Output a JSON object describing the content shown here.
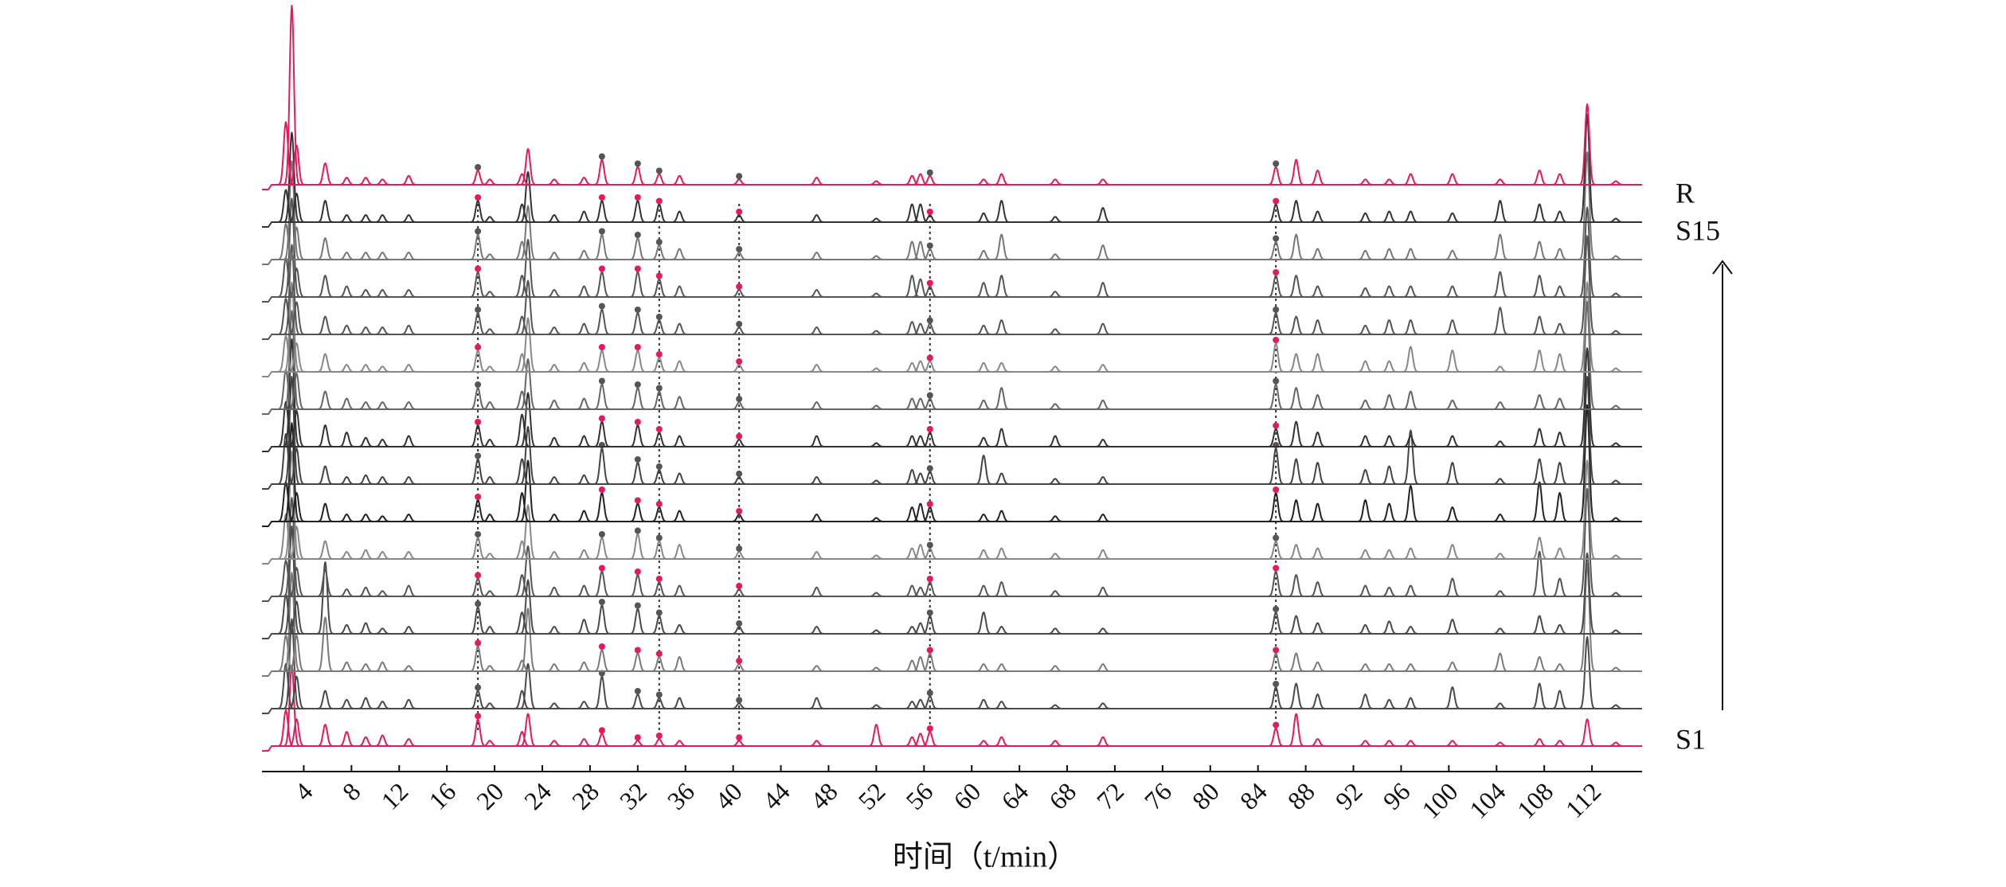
{
  "chart_data": {
    "type": "line",
    "xlabel": "时间（t/min）",
    "xlim": [
      0.5,
      116.2
    ],
    "xticks": [
      4,
      8,
      12,
      16,
      20,
      24,
      28,
      32,
      36,
      40,
      44,
      48,
      52,
      56,
      60,
      64,
      68,
      72,
      76,
      80,
      84,
      88,
      92,
      96,
      100,
      104,
      108,
      112
    ],
    "x": [
      2.5,
      3.0,
      3.4,
      5.8,
      7.6,
      9.2,
      10.6,
      12.8,
      18.6,
      19.6,
      22.3,
      22.8,
      25.0,
      27.5,
      29.0,
      32.0,
      33.8,
      35.5,
      40.5,
      47.0,
      52.0,
      55.0,
      55.7,
      56.5,
      61.0,
      62.5,
      67.0,
      71.0,
      85.5,
      87.2,
      89.0,
      93.0,
      95.0,
      96.8,
      100.3,
      104.3,
      107.6,
      109.3,
      111.6,
      114.0
    ],
    "marker_x": [
      18.6,
      29.0,
      32.0,
      33.8,
      40.5,
      56.5,
      85.5
    ],
    "marker_color": "#e8185a",
    "reference_lines": [
      18.6,
      33.8,
      40.5,
      56.5,
      85.5
    ],
    "series": [
      {
        "name": "S1",
        "color": "#e8185a",
        "values": [
          20,
          45,
          15,
          12,
          8,
          5,
          6,
          4,
          15,
          3,
          8,
          18,
          3,
          4,
          7,
          3,
          4,
          3,
          3,
          3,
          12,
          5,
          7,
          8,
          3,
          5,
          3,
          5,
          10,
          18,
          4,
          3,
          3,
          3,
          3,
          2,
          4,
          3,
          15,
          2
        ]
      },
      {
        "color": "#4a4a4a",
        "values": [
          25,
          50,
          18,
          10,
          5,
          6,
          4,
          5,
          10,
          3,
          10,
          25,
          3,
          4,
          18,
          8,
          6,
          6,
          3,
          6,
          2,
          4,
          5,
          7,
          5,
          4,
          2,
          3,
          12,
          14,
          8,
          8,
          5,
          6,
          12,
          3,
          14,
          10,
          40,
          2
        ]
      },
      {
        "color": "#7a7a7a",
        "values": [
          20,
          55,
          20,
          30,
          5,
          4,
          5,
          3,
          14,
          3,
          6,
          35,
          4,
          5,
          12,
          10,
          8,
          8,
          4,
          3,
          2,
          6,
          8,
          10,
          4,
          4,
          3,
          4,
          10,
          10,
          5,
          4,
          4,
          4,
          5,
          10,
          8,
          4,
          60,
          2
        ]
      },
      {
        "color": "#4a4a4a",
        "values": [
          22,
          60,
          18,
          40,
          5,
          6,
          3,
          4,
          15,
          4,
          12,
          30,
          4,
          8,
          16,
          14,
          10,
          5,
          4,
          4,
          2,
          4,
          6,
          10,
          12,
          4,
          3,
          3,
          12,
          10,
          6,
          5,
          7,
          4,
          8,
          3,
          10,
          5,
          45,
          2
        ]
      },
      {
        "color": "#555555",
        "values": [
          20,
          55,
          16,
          15,
          4,
          5,
          3,
          6,
          10,
          3,
          12,
          28,
          5,
          6,
          14,
          12,
          8,
          6,
          4,
          5,
          2,
          6,
          5,
          8,
          6,
          8,
          3,
          5,
          14,
          12,
          8,
          6,
          5,
          6,
          10,
          3,
          25,
          10,
          60,
          2
        ]
      },
      {
        "color": "#888888",
        "values": [
          25,
          60,
          18,
          10,
          4,
          5,
          4,
          4,
          12,
          3,
          10,
          30,
          4,
          5,
          12,
          14,
          10,
          8,
          4,
          4,
          2,
          6,
          8,
          6,
          5,
          6,
          3,
          5,
          10,
          8,
          6,
          5,
          5,
          6,
          8,
          3,
          12,
          6,
          55,
          2
        ]
      },
      {
        "color": "#222222",
        "values": [
          22,
          55,
          16,
          10,
          4,
          4,
          3,
          4,
          12,
          4,
          16,
          34,
          4,
          6,
          16,
          10,
          8,
          6,
          4,
          4,
          2,
          8,
          10,
          8,
          4,
          6,
          3,
          4,
          16,
          12,
          10,
          12,
          10,
          20,
          8,
          4,
          22,
          16,
          65,
          2
        ]
      },
      {
        "color": "#444444",
        "values": [
          28,
          60,
          20,
          10,
          4,
          5,
          4,
          4,
          14,
          4,
          14,
          32,
          4,
          5,
          20,
          12,
          8,
          6,
          4,
          4,
          2,
          8,
          6,
          7,
          16,
          6,
          3,
          4,
          20,
          14,
          12,
          8,
          10,
          30,
          12,
          3,
          14,
          12,
          60,
          2
        ]
      },
      {
        "color": "#333333",
        "values": [
          25,
          60,
          20,
          12,
          8,
          5,
          4,
          6,
          12,
          4,
          18,
          30,
          5,
          6,
          14,
          12,
          8,
          6,
          4,
          6,
          2,
          6,
          6,
          8,
          5,
          10,
          6,
          4,
          10,
          14,
          8,
          6,
          6,
          6,
          6,
          3,
          10,
          8,
          55,
          2
        ]
      },
      {
        "color": "#666666",
        "values": [
          22,
          55,
          20,
          10,
          6,
          4,
          4,
          4,
          12,
          4,
          10,
          28,
          5,
          6,
          14,
          12,
          10,
          7,
          4,
          4,
          2,
          6,
          6,
          6,
          5,
          12,
          3,
          5,
          14,
          12,
          8,
          5,
          8,
          10,
          5,
          4,
          8,
          6,
          60,
          2
        ]
      },
      {
        "color": "#888888",
        "values": [
          20,
          50,
          16,
          10,
          4,
          4,
          3,
          4,
          12,
          3,
          10,
          30,
          4,
          5,
          12,
          12,
          8,
          6,
          4,
          4,
          2,
          5,
          6,
          6,
          5,
          5,
          3,
          4,
          16,
          10,
          10,
          6,
          6,
          14,
          12,
          3,
          12,
          10,
          50,
          2
        ]
      },
      {
        "color": "#555555",
        "values": [
          20,
          50,
          18,
          10,
          5,
          4,
          4,
          5,
          12,
          3,
          10,
          30,
          4,
          6,
          14,
          12,
          8,
          6,
          4,
          4,
          2,
          7,
          6,
          6,
          5,
          8,
          3,
          6,
          12,
          10,
          8,
          5,
          8,
          8,
          8,
          15,
          10,
          6,
          55,
          2
        ]
      },
      {
        "color": "#555555",
        "values": [
          22,
          55,
          16,
          12,
          6,
          4,
          4,
          4,
          14,
          3,
          12,
          32,
          4,
          6,
          14,
          14,
          10,
          6,
          4,
          4,
          2,
          12,
          10,
          6,
          8,
          12,
          3,
          8,
          12,
          12,
          6,
          5,
          6,
          6,
          6,
          14,
          12,
          6,
          50,
          2
        ]
      },
      {
        "color": "#777777",
        "values": [
          20,
          55,
          18,
          12,
          4,
          4,
          4,
          4,
          14,
          3,
          10,
          30,
          4,
          5,
          14,
          12,
          8,
          6,
          4,
          4,
          2,
          10,
          10,
          6,
          5,
          14,
          3,
          8,
          10,
          14,
          6,
          5,
          6,
          6,
          5,
          14,
          10,
          6,
          60,
          2
        ]
      },
      {
        "name": "S15",
        "color": "#333333",
        "values": [
          18,
          50,
          16,
          12,
          4,
          4,
          4,
          4,
          12,
          3,
          10,
          28,
          4,
          6,
          12,
          12,
          10,
          6,
          4,
          4,
          2,
          10,
          10,
          4,
          5,
          12,
          3,
          8,
          10,
          12,
          6,
          5,
          6,
          6,
          5,
          12,
          10,
          6,
          60,
          2
        ]
      },
      {
        "name": "R",
        "color": "#e8185a",
        "values": [
          35,
          100,
          22,
          12,
          4,
          4,
          3,
          5,
          8,
          3,
          6,
          20,
          3,
          4,
          14,
          10,
          6,
          5,
          3,
          4,
          2,
          5,
          6,
          5,
          3,
          6,
          3,
          3,
          10,
          14,
          8,
          3,
          3,
          6,
          6,
          3,
          8,
          6,
          45,
          2
        ]
      }
    ]
  }
}
